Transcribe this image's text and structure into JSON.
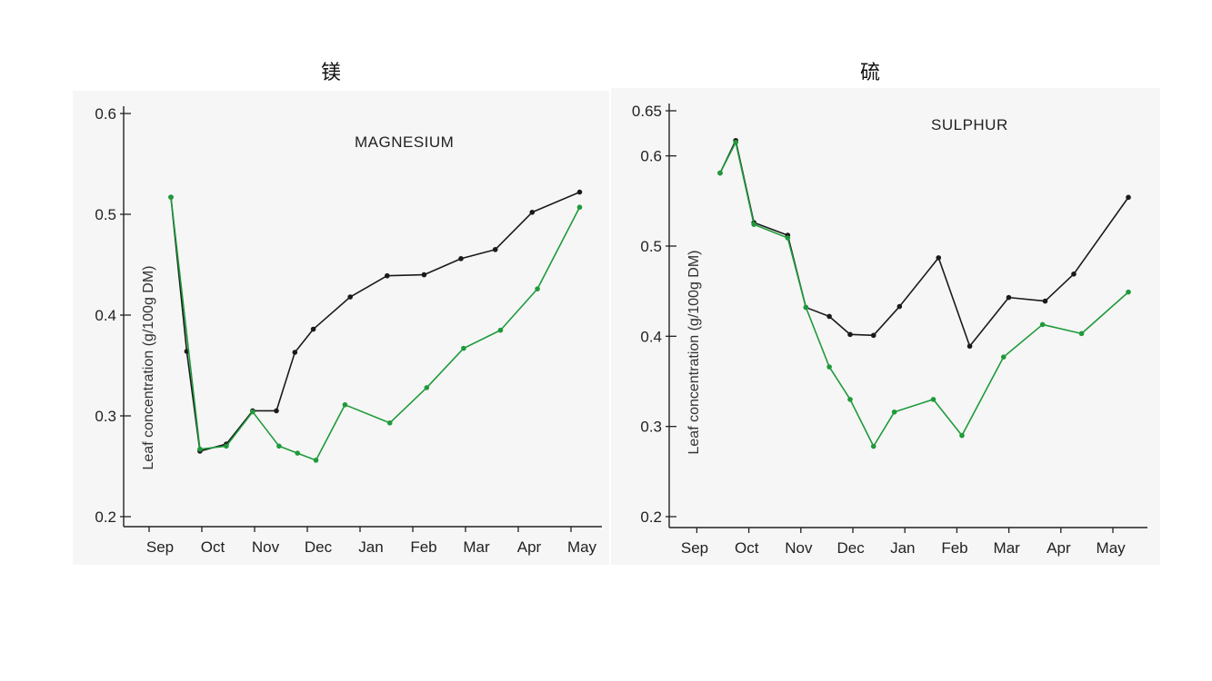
{
  "titles": {
    "left": "镁",
    "right": "硫"
  },
  "chart_data": [
    {
      "type": "line",
      "title": "MAGNESIUM",
      "ylabel": "Leaf concentration (g/100g DM)",
      "categories": [
        "Sep",
        "Oct",
        "Nov",
        "Dec",
        "Jan",
        "Feb",
        "Mar",
        "Apr",
        "May"
      ],
      "yticks": [
        "0.2",
        "0.3",
        "0.4",
        "0.5",
        "0.6"
      ],
      "ylim": [
        0.2,
        0.6
      ],
      "grid": false,
      "series": [
        {
          "color": "#1a1a1a",
          "points": [
            {
              "x": 0.0,
              "y": 0.517
            },
            {
              "x": 0.3,
              "y": 0.364
            },
            {
              "x": 0.55,
              "y": 0.265
            },
            {
              "x": 1.05,
              "y": 0.272
            },
            {
              "x": 1.55,
              "y": 0.305
            },
            {
              "x": 2.0,
              "y": 0.305
            },
            {
              "x": 2.35,
              "y": 0.363
            },
            {
              "x": 2.7,
              "y": 0.386
            },
            {
              "x": 3.4,
              "y": 0.418
            },
            {
              "x": 4.1,
              "y": 0.439
            },
            {
              "x": 4.8,
              "y": 0.44
            },
            {
              "x": 5.5,
              "y": 0.456
            },
            {
              "x": 6.15,
              "y": 0.465
            },
            {
              "x": 6.85,
              "y": 0.502
            },
            {
              "x": 7.75,
              "y": 0.522
            }
          ]
        },
        {
          "color": "#1f9a3a",
          "points": [
            {
              "x": 0.0,
              "y": 0.517
            },
            {
              "x": 0.55,
              "y": 0.267
            },
            {
              "x": 1.05,
              "y": 0.27
            },
            {
              "x": 1.55,
              "y": 0.304
            },
            {
              "x": 2.05,
              "y": 0.27
            },
            {
              "x": 2.4,
              "y": 0.263
            },
            {
              "x": 2.75,
              "y": 0.256
            },
            {
              "x": 3.3,
              "y": 0.311
            },
            {
              "x": 4.15,
              "y": 0.293
            },
            {
              "x": 4.85,
              "y": 0.328
            },
            {
              "x": 5.55,
              "y": 0.367
            },
            {
              "x": 6.25,
              "y": 0.385
            },
            {
              "x": 6.95,
              "y": 0.426
            },
            {
              "x": 7.75,
              "y": 0.507
            }
          ]
        }
      ]
    },
    {
      "type": "line",
      "title": "SULPHUR",
      "ylabel": "Leaf concentration (g/100g DM)",
      "categories": [
        "Sep",
        "Oct",
        "Nov",
        "Dec",
        "Jan",
        "Feb",
        "Mar",
        "Apr",
        "May"
      ],
      "yticks": [
        "0.2",
        "0.3",
        "0.4",
        "0.5",
        "0.6",
        "0.65"
      ],
      "ylim": [
        0.2,
        0.65
      ],
      "grid": false,
      "series": [
        {
          "color": "#1a1a1a",
          "points": [
            {
              "x": 0.0,
              "y": 0.581
            },
            {
              "x": 0.3,
              "y": 0.617
            },
            {
              "x": 0.65,
              "y": 0.526
            },
            {
              "x": 1.3,
              "y": 0.512
            },
            {
              "x": 1.65,
              "y": 0.432
            },
            {
              "x": 2.1,
              "y": 0.422
            },
            {
              "x": 2.5,
              "y": 0.402
            },
            {
              "x": 2.95,
              "y": 0.401
            },
            {
              "x": 3.45,
              "y": 0.433
            },
            {
              "x": 4.2,
              "y": 0.487
            },
            {
              "x": 4.8,
              "y": 0.389
            },
            {
              "x": 5.55,
              "y": 0.443
            },
            {
              "x": 6.25,
              "y": 0.439
            },
            {
              "x": 6.8,
              "y": 0.469
            },
            {
              "x": 7.85,
              "y": 0.554
            }
          ]
        },
        {
          "color": "#1f9a3a",
          "points": [
            {
              "x": 0.0,
              "y": 0.581
            },
            {
              "x": 0.3,
              "y": 0.615
            },
            {
              "x": 0.65,
              "y": 0.524
            },
            {
              "x": 1.3,
              "y": 0.509
            },
            {
              "x": 1.65,
              "y": 0.432
            },
            {
              "x": 2.1,
              "y": 0.366
            },
            {
              "x": 2.5,
              "y": 0.33
            },
            {
              "x": 2.95,
              "y": 0.278
            },
            {
              "x": 3.35,
              "y": 0.316
            },
            {
              "x": 4.1,
              "y": 0.33
            },
            {
              "x": 4.65,
              "y": 0.29
            },
            {
              "x": 5.45,
              "y": 0.377
            },
            {
              "x": 6.2,
              "y": 0.413
            },
            {
              "x": 6.95,
              "y": 0.403
            },
            {
              "x": 7.85,
              "y": 0.449
            }
          ]
        }
      ]
    }
  ]
}
